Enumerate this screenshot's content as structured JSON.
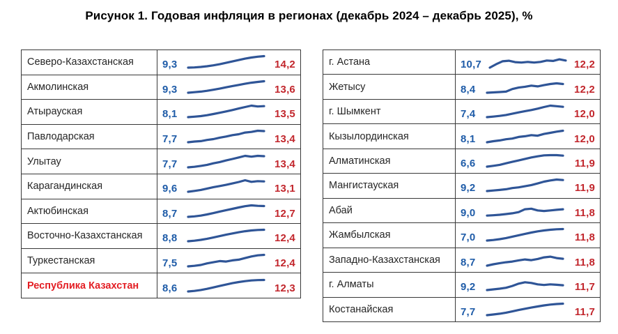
{
  "title": "Рисунок 1. Годовая инфляция в регионах (декабрь 2024 – декабрь 2025), %",
  "colors": {
    "sparkline": "#2f5597",
    "start_value": "#1f5ca8",
    "end_value": "#c2262c",
    "highlight_region": "#e31e24",
    "border": "#383838",
    "region_text": "#262626"
  },
  "chart_data": {
    "type": "line",
    "title": "Рисунок 1. Годовая инфляция в регионах (декабрь 2024 – декабрь 2025), %",
    "unit": "%",
    "period_start": "декабрь 2024",
    "period_end": "декабрь 2025",
    "legend_position": "none",
    "grid": false,
    "tables": [
      {
        "rows": [
          {
            "region": "Северо-Казахстанская",
            "start": 9.3,
            "end": 14.2,
            "start_label": "9,3",
            "end_label": "14,2",
            "highlight": false,
            "profile": [
              0,
              0.02,
              0.06,
              0.12,
              0.2,
              0.3,
              0.42,
              0.54,
              0.66,
              0.78,
              0.88,
              0.95,
              1
            ]
          },
          {
            "region": "Акмолинская",
            "start": 9.3,
            "end": 13.6,
            "start_label": "9,3",
            "end_label": "13,6",
            "highlight": false,
            "profile": [
              0,
              0.05,
              0.1,
              0.17,
              0.26,
              0.36,
              0.47,
              0.58,
              0.68,
              0.78,
              0.87,
              0.94,
              1
            ]
          },
          {
            "region": "Атырауская",
            "start": 8.1,
            "end": 13.5,
            "start_label": "8,1",
            "end_label": "13,5",
            "highlight": false,
            "profile": [
              0,
              0.04,
              0.09,
              0.17,
              0.27,
              0.38,
              0.5,
              0.62,
              0.75,
              0.88,
              1,
              0.93,
              0.96
            ]
          },
          {
            "region": "Павлодарская",
            "start": 7.7,
            "end": 13.4,
            "start_label": "7,7",
            "end_label": "13,4",
            "highlight": false,
            "profile": [
              0,
              0.06,
              0.1,
              0.2,
              0.27,
              0.4,
              0.5,
              0.62,
              0.7,
              0.84,
              0.9,
              1,
              0.97
            ]
          },
          {
            "region": "Улытау",
            "start": 7.7,
            "end": 13.4,
            "start_label": "7,7",
            "end_label": "13,4",
            "highlight": false,
            "profile": [
              0,
              0.05,
              0.13,
              0.22,
              0.35,
              0.46,
              0.6,
              0.73,
              0.86,
              1,
              0.93,
              1,
              0.97
            ]
          },
          {
            "region": "Карагандинская",
            "start": 9.6,
            "end": 13.1,
            "start_label": "9,6",
            "end_label": "13,1",
            "highlight": false,
            "profile": [
              0,
              0.07,
              0.16,
              0.28,
              0.4,
              0.5,
              0.6,
              0.72,
              0.85,
              1,
              0.86,
              0.92,
              0.9
            ]
          },
          {
            "region": "Актюбинская",
            "start": 8.7,
            "end": 12.7,
            "start_label": "8,7",
            "end_label": "12,7",
            "highlight": false,
            "profile": [
              0,
              0.04,
              0.11,
              0.21,
              0.33,
              0.46,
              0.58,
              0.7,
              0.82,
              0.93,
              1,
              0.96,
              0.94
            ]
          },
          {
            "region": "Восточно-Казахстанская",
            "start": 8.8,
            "end": 12.4,
            "start_label": "8,8",
            "end_label": "12,4",
            "highlight": false,
            "profile": [
              0,
              0.05,
              0.12,
              0.22,
              0.33,
              0.45,
              0.57,
              0.68,
              0.78,
              0.87,
              0.94,
              0.98,
              1
            ]
          },
          {
            "region": "Туркестанская",
            "start": 7.5,
            "end": 12.4,
            "start_label": "7,5",
            "end_label": "12,4",
            "highlight": false,
            "profile": [
              0,
              0.05,
              0.12,
              0.26,
              0.36,
              0.46,
              0.42,
              0.52,
              0.58,
              0.72,
              0.86,
              0.96,
              1
            ]
          },
          {
            "region": "Республика Казахстан",
            "start": 8.6,
            "end": 12.3,
            "start_label": "8,6",
            "end_label": "12,3",
            "highlight": true,
            "profile": [
              0,
              0.05,
              0.13,
              0.23,
              0.35,
              0.48,
              0.6,
              0.72,
              0.82,
              0.9,
              0.96,
              0.99,
              1
            ]
          }
        ]
      },
      {
        "rows": [
          {
            "region": "г. Астана",
            "start": 10.7,
            "end": 12.2,
            "start_label": "10,7",
            "end_label": "12,2",
            "highlight": false,
            "profile": [
              0,
              0.3,
              0.55,
              0.6,
              0.48,
              0.44,
              0.5,
              0.44,
              0.5,
              0.62,
              0.58,
              0.72,
              0.62
            ]
          },
          {
            "region": "Жетысу",
            "start": 8.4,
            "end": 12.2,
            "start_label": "8,4",
            "end_label": "12,2",
            "highlight": false,
            "profile": [
              0,
              0.03,
              0.06,
              0.1,
              0.32,
              0.45,
              0.52,
              0.62,
              0.55,
              0.66,
              0.76,
              0.82,
              0.76
            ]
          },
          {
            "region": "г. Шымкент",
            "start": 7.4,
            "end": 12.0,
            "start_label": "7,4",
            "end_label": "12,0",
            "highlight": false,
            "profile": [
              0,
              0.05,
              0.11,
              0.19,
              0.3,
              0.41,
              0.52,
              0.62,
              0.74,
              0.88,
              1,
              0.95,
              0.9
            ]
          },
          {
            "region": "Кызылординская",
            "start": 8.1,
            "end": 12.0,
            "start_label": "8,1",
            "end_label": "12,0",
            "highlight": false,
            "profile": [
              0,
              0.09,
              0.16,
              0.26,
              0.32,
              0.46,
              0.52,
              0.62,
              0.57,
              0.72,
              0.82,
              0.92,
              1
            ]
          },
          {
            "region": "Алматинская",
            "start": 6.6,
            "end": 11.9,
            "start_label": "6,6",
            "end_label": "11,9",
            "highlight": false,
            "profile": [
              0,
              0.07,
              0.16,
              0.29,
              0.42,
              0.54,
              0.67,
              0.8,
              0.9,
              0.98,
              1,
              1,
              0.96
            ]
          },
          {
            "region": "Мангистауская",
            "start": 9.2,
            "end": 11.9,
            "start_label": "9,2",
            "end_label": "11,9",
            "highlight": false,
            "profile": [
              0,
              0.05,
              0.1,
              0.16,
              0.26,
              0.32,
              0.42,
              0.52,
              0.66,
              0.82,
              0.92,
              1,
              0.96
            ]
          },
          {
            "region": "Абай",
            "start": 9.0,
            "end": 11.8,
            "start_label": "9,0",
            "end_label": "11,8",
            "highlight": false,
            "profile": [
              0.05,
              0.08,
              0.12,
              0.18,
              0.25,
              0.35,
              0.6,
              0.65,
              0.5,
              0.45,
              0.5,
              0.55,
              0.6
            ]
          },
          {
            "region": "Жамбылская",
            "start": 7.0,
            "end": 11.8,
            "start_label": "7,0",
            "end_label": "11,8",
            "highlight": false,
            "profile": [
              0,
              0.05,
              0.12,
              0.22,
              0.34,
              0.46,
              0.58,
              0.7,
              0.8,
              0.88,
              0.94,
              0.98,
              1
            ]
          },
          {
            "region": "Западно-Казахстанская",
            "start": 8.7,
            "end": 11.8,
            "start_label": "8,7",
            "end_label": "11,8",
            "highlight": false,
            "profile": [
              0,
              0.12,
              0.22,
              0.3,
              0.36,
              0.46,
              0.54,
              0.48,
              0.58,
              0.72,
              0.78,
              0.66,
              0.6
            ]
          },
          {
            "region": "г. Алматы",
            "start": 9.2,
            "end": 11.7,
            "start_label": "9,2",
            "end_label": "11,7",
            "highlight": false,
            "profile": [
              0,
              0.06,
              0.12,
              0.2,
              0.36,
              0.56,
              0.68,
              0.62,
              0.5,
              0.44,
              0.5,
              0.46,
              0.42
            ]
          },
          {
            "region": "Костанайская",
            "start": 7.7,
            "end": 11.7,
            "start_label": "7,7",
            "end_label": "11,7",
            "highlight": false,
            "profile": [
              0,
              0.06,
              0.13,
              0.22,
              0.33,
              0.45,
              0.56,
              0.66,
              0.76,
              0.85,
              0.92,
              0.97,
              1
            ]
          }
        ]
      }
    ]
  }
}
